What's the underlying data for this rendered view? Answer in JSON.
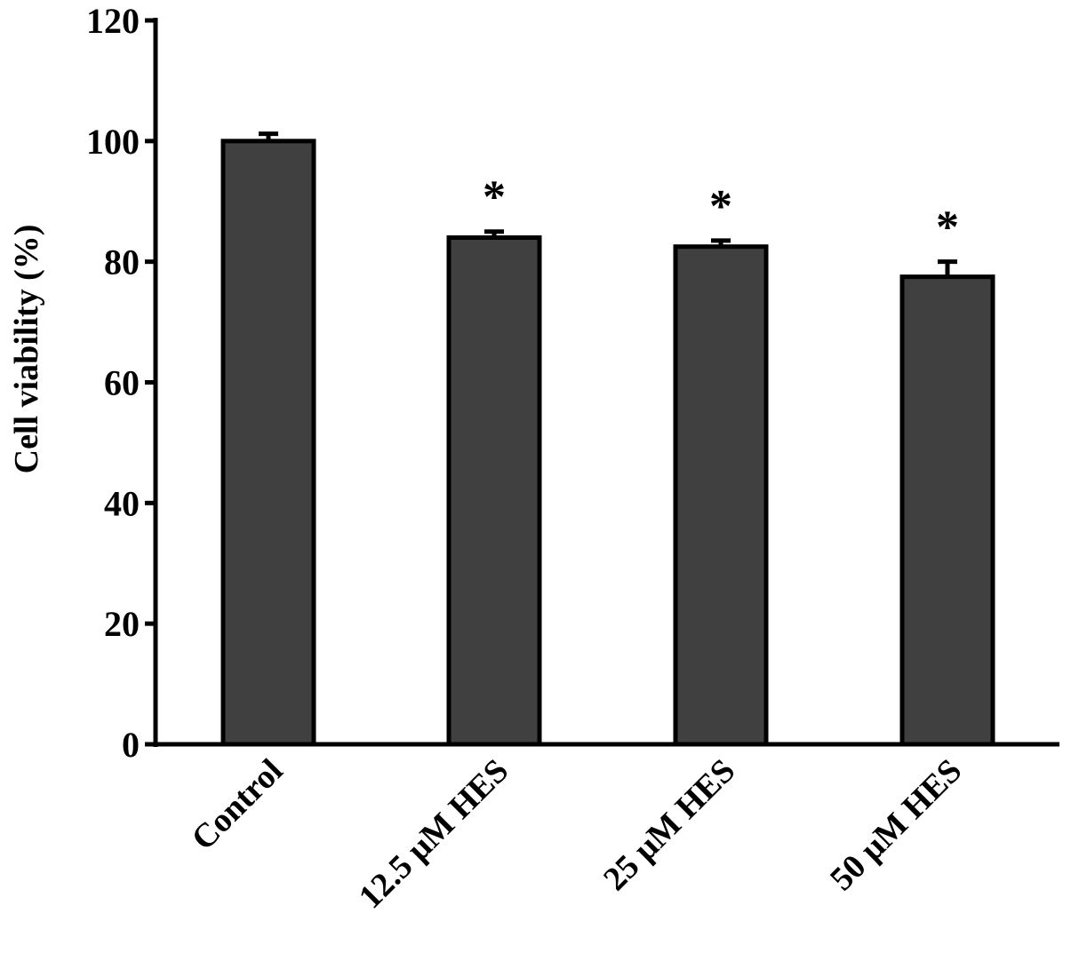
{
  "chart_data": {
    "type": "bar",
    "title": "",
    "xlabel": "",
    "ylabel": "Cell viability (%)",
    "ylim": [
      0,
      120
    ],
    "yticks": [
      0,
      20,
      40,
      60,
      80,
      100,
      120
    ],
    "categories": [
      "Control",
      "12.5 μM HES",
      "25 μM HES",
      "50 μM HES"
    ],
    "values": [
      100,
      84,
      82.5,
      77.5
    ],
    "errors": [
      1.2,
      1.0,
      1.0,
      2.5
    ],
    "annotations": [
      "",
      "*",
      "*",
      "*"
    ],
    "grid": false,
    "legend": "none",
    "colors": {
      "bar": "#404040",
      "outline": "#000000",
      "background": "#ffffff"
    }
  }
}
